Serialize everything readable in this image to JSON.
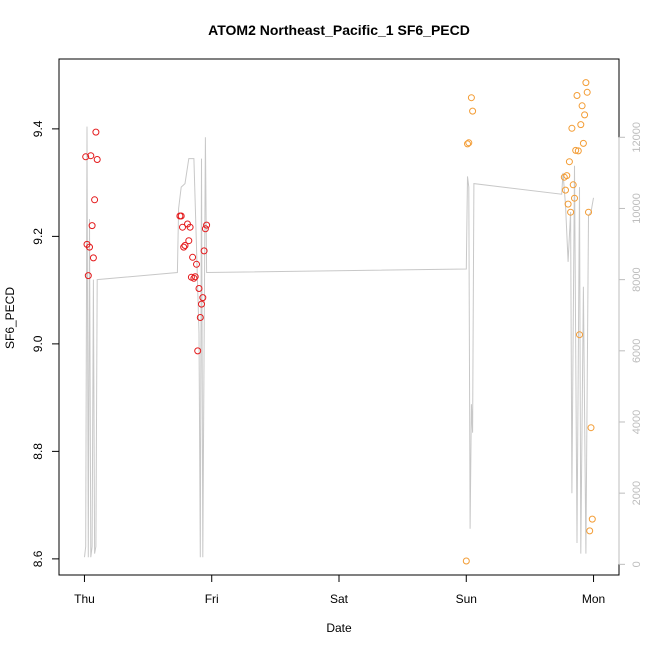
{
  "chart_data": {
    "type": "scatter",
    "title": "ATOM2 Northeast_Pacific_1 SF6_PECD",
    "xlabel": "Date",
    "ylabel": "SF6_PECD",
    "x_ticks": [
      {
        "label": "Thu",
        "day": 0
      },
      {
        "label": "Fri",
        "day": 1
      },
      {
        "label": "Sat",
        "day": 2
      },
      {
        "label": "Sun",
        "day": 3
      },
      {
        "label": "Mon",
        "day": 4
      }
    ],
    "xlim": [
      -0.2,
      4.2
    ],
    "ylim": [
      8.57,
      9.53
    ],
    "y_ticks": [
      8.6,
      8.8,
      9.0,
      9.2,
      9.4
    ],
    "y2lim": [
      -300,
      14200
    ],
    "y2_ticks": [
      0,
      2000,
      4000,
      6000,
      8000,
      10000,
      12000
    ],
    "grid": false,
    "colors": {
      "red_series": "#e41a1c",
      "orange_series": "#f39c34",
      "depth_line": "#c8c8c8",
      "right_axis": "#bdbdbd"
    },
    "series": [
      {
        "color": "red",
        "points": [
          [
            0.01,
            9.348
          ],
          [
            0.02,
            9.185
          ],
          [
            0.03,
            9.127
          ],
          [
            0.04,
            9.18
          ],
          [
            0.05,
            9.35
          ],
          [
            0.06,
            9.22
          ],
          [
            0.07,
            9.16
          ],
          [
            0.08,
            9.268
          ],
          [
            0.09,
            9.394
          ],
          [
            0.1,
            9.343
          ],
          [
            0.75,
            9.238
          ],
          [
            0.76,
            9.238
          ],
          [
            0.77,
            9.217
          ],
          [
            0.78,
            9.18
          ],
          [
            0.79,
            9.183
          ],
          [
            0.81,
            9.223
          ],
          [
            0.82,
            9.192
          ],
          [
            0.83,
            9.217
          ],
          [
            0.84,
            9.124
          ],
          [
            0.85,
            9.161
          ],
          [
            0.86,
            9.122
          ],
          [
            0.87,
            9.125
          ],
          [
            0.88,
            9.148
          ],
          [
            0.89,
            8.987
          ],
          [
            0.9,
            9.103
          ],
          [
            0.91,
            9.049
          ],
          [
            0.92,
            9.074
          ],
          [
            0.93,
            9.086
          ],
          [
            0.94,
            9.173
          ],
          [
            0.95,
            9.214
          ],
          [
            0.96,
            9.221
          ]
        ]
      },
      {
        "color": "orange",
        "points": [
          [
            3.0,
            8.596
          ],
          [
            3.01,
            9.372
          ],
          [
            3.02,
            9.374
          ],
          [
            3.04,
            9.458
          ],
          [
            3.05,
            9.433
          ],
          [
            3.77,
            9.31
          ],
          [
            3.78,
            9.286
          ],
          [
            3.79,
            9.313
          ],
          [
            3.8,
            9.26
          ],
          [
            3.81,
            9.339
          ],
          [
            3.82,
            9.245
          ],
          [
            3.83,
            9.401
          ],
          [
            3.84,
            9.296
          ],
          [
            3.85,
            9.271
          ],
          [
            3.86,
            9.36
          ],
          [
            3.87,
            9.462
          ],
          [
            3.88,
            9.359
          ],
          [
            3.89,
            9.017
          ],
          [
            3.9,
            9.408
          ],
          [
            3.91,
            9.443
          ],
          [
            3.92,
            9.373
          ],
          [
            3.93,
            9.426
          ],
          [
            3.94,
            9.486
          ],
          [
            3.95,
            9.468
          ],
          [
            3.96,
            9.245
          ],
          [
            3.97,
            8.652
          ],
          [
            3.98,
            8.844
          ],
          [
            3.99,
            8.674
          ]
        ]
      }
    ],
    "depth_line": [
      [
        0.0,
        200
      ],
      [
        0.01,
        500
      ],
      [
        0.02,
        12300
      ],
      [
        0.03,
        200
      ],
      [
        0.04,
        9700
      ],
      [
        0.05,
        200
      ],
      [
        0.06,
        500
      ],
      [
        0.07,
        8000
      ],
      [
        0.08,
        300
      ],
      [
        0.09,
        500
      ],
      [
        0.1,
        8000
      ],
      [
        0.73,
        8200
      ],
      [
        0.74,
        10000
      ],
      [
        0.76,
        10600
      ],
      [
        0.79,
        10700
      ],
      [
        0.82,
        11400
      ],
      [
        0.86,
        11400
      ],
      [
        0.9,
        6500
      ],
      [
        0.91,
        200
      ],
      [
        0.92,
        11400
      ],
      [
        0.93,
        200
      ],
      [
        0.95,
        12000
      ],
      [
        0.96,
        8200
      ],
      [
        3.0,
        8300
      ],
      [
        3.01,
        10900
      ],
      [
        3.02,
        10600
      ],
      [
        3.03,
        1000
      ],
      [
        3.04,
        4500
      ],
      [
        3.05,
        3700
      ],
      [
        3.06,
        10700
      ],
      [
        3.75,
        10400
      ],
      [
        3.76,
        11000
      ],
      [
        3.78,
        10100
      ],
      [
        3.8,
        8500
      ],
      [
        3.82,
        9900
      ],
      [
        3.83,
        2000
      ],
      [
        3.85,
        11200
      ],
      [
        3.87,
        600
      ],
      [
        3.89,
        10600
      ],
      [
        3.9,
        300
      ],
      [
        3.92,
        7800
      ],
      [
        3.94,
        300
      ],
      [
        3.96,
        9800
      ],
      [
        3.98,
        9900
      ],
      [
        4.0,
        10300
      ]
    ]
  }
}
